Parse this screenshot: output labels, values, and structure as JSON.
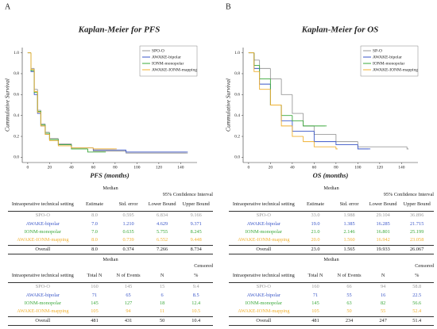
{
  "chart_data": [
    {
      "type": "line",
      "step": true,
      "panel_label": "A",
      "title": "Kaplan-Meier for PFS",
      "x_label": "PFS (months)",
      "y_label": "Cummulative Survival",
      "xlim": [
        -5,
        155
      ],
      "ylim": [
        -0.05,
        1.05
      ],
      "xticks": [
        0,
        20,
        40,
        60,
        80,
        100,
        120,
        140
      ],
      "yticks": [
        {
          "value": 0,
          "label": "0.0"
        },
        {
          "value": 0.2,
          "label": "0.2"
        },
        {
          "value": 0.4,
          "label": "0.4"
        },
        {
          "value": 0.6,
          "label": "0.6"
        },
        {
          "value": 0.8,
          "label": "0.8"
        },
        {
          "value": 1,
          "label": "1.0"
        }
      ],
      "legend": "upper right",
      "series": [
        {
          "name": "SPO-O",
          "color": "#9a9a9a",
          "x": [
            0,
            3,
            6,
            9,
            12,
            16,
            20,
            28,
            40,
            60,
            90,
            145
          ],
          "values": [
            1,
            0.85,
            0.65,
            0.45,
            0.32,
            0.24,
            0.18,
            0.13,
            0.09,
            0.06,
            0.04,
            0.04
          ]
        },
        {
          "name": "AWAKE-bipolar",
          "color": "#3a56c8",
          "x": [
            0,
            3,
            6,
            9,
            12,
            16,
            20,
            28,
            40,
            60,
            90,
            145
          ],
          "values": [
            1,
            0.82,
            0.6,
            0.42,
            0.3,
            0.22,
            0.17,
            0.12,
            0.09,
            0.07,
            0.05,
            0.05
          ]
        },
        {
          "name": "IONM-monopolar",
          "color": "#3aa83a",
          "x": [
            0,
            3,
            6,
            9,
            12,
            16,
            20,
            28,
            40,
            55,
            70
          ],
          "values": [
            1,
            0.83,
            0.62,
            0.44,
            0.31,
            0.23,
            0.17,
            0.12,
            0.08,
            0.05,
            0.05
          ]
        },
        {
          "name": "AWAKE-IONM-mapping",
          "color": "#f0b030",
          "x": [
            0,
            3,
            6,
            9,
            12,
            16,
            20,
            28,
            40,
            60,
            80
          ],
          "values": [
            1,
            0.84,
            0.63,
            0.43,
            0.3,
            0.22,
            0.16,
            0.11,
            0.09,
            0.08,
            0.08
          ]
        }
      ]
    },
    {
      "type": "line",
      "step": true,
      "panel_label": "B",
      "title": "Kaplan-Meier for OS",
      "x_label": "OS (months)",
      "y_label": "Cummulative Survival",
      "xlim": [
        -5,
        155
      ],
      "ylim": [
        -0.05,
        1.05
      ],
      "xticks": [
        0,
        20,
        40,
        60,
        80,
        100,
        120,
        140
      ],
      "yticks": [
        {
          "value": 0,
          "label": "0.0"
        },
        {
          "value": 0.2,
          "label": "0.2"
        },
        {
          "value": 0.4,
          "label": "0.4"
        },
        {
          "value": 0.6,
          "label": "0.6"
        },
        {
          "value": 0.8,
          "label": "0.8"
        },
        {
          "value": 1,
          "label": "1.0"
        }
      ],
      "legend": "upper right",
      "series": [
        {
          "name": "SP-O",
          "color": "#9a9a9a",
          "x": [
            0,
            5,
            10,
            20,
            30,
            40,
            50,
            60,
            80,
            100,
            145
          ],
          "values": [
            1,
            0.93,
            0.85,
            0.75,
            0.6,
            0.42,
            0.3,
            0.22,
            0.15,
            0.1,
            0.08
          ]
        },
        {
          "name": "AWAKE-bipolar",
          "color": "#3a56c8",
          "x": [
            0,
            5,
            10,
            20,
            30,
            40,
            60,
            80,
            100,
            110
          ],
          "values": [
            1,
            0.85,
            0.7,
            0.5,
            0.35,
            0.25,
            0.15,
            0.12,
            0.08,
            0.08
          ]
        },
        {
          "name": "IONM-monopolar",
          "color": "#3aa83a",
          "x": [
            0,
            5,
            10,
            20,
            30,
            40,
            50,
            70
          ],
          "values": [
            1,
            0.88,
            0.75,
            0.5,
            0.4,
            0.35,
            0.3,
            0.3
          ]
        },
        {
          "name": "AWAKE-IONM-mapping",
          "color": "#f0b030",
          "x": [
            0,
            5,
            10,
            20,
            30,
            40,
            50,
            60,
            80
          ],
          "values": [
            1,
            0.82,
            0.65,
            0.5,
            0.3,
            0.2,
            0.15,
            0.1,
            0.08
          ]
        }
      ]
    }
  ],
  "tables": [
    {
      "median": {
        "title": "Median",
        "group_header": "95% Confidence Interval",
        "columns": [
          "Intraoperative technical setting",
          "Estimate",
          "Std. error",
          "Lower Bound",
          "Upper Bound"
        ],
        "rows": [
          [
            "SPO-O",
            "8.0",
            "0.595",
            "6.834",
            "9.166"
          ],
          [
            "AWAKE-bipolar",
            "7.0",
            "1.210",
            "4.629",
            "9.371"
          ],
          [
            "IONM-monopolar",
            "7.0",
            "0.635",
            "5.755",
            "8.245"
          ],
          [
            "AWAKE-IONM-mapping",
            "8.0",
            "0.739",
            "6.552",
            "9.448"
          ],
          [
            "Overall",
            "8.0",
            "0.374",
            "7.266",
            "8.734"
          ]
        ]
      },
      "censored": {
        "title": "Median",
        "group_header": "Censored",
        "columns": [
          "Intraoperative technical setting",
          "Total N",
          "N of Events",
          "N",
          "%"
        ],
        "rows": [
          [
            "SPO-O",
            "160",
            "145",
            "15",
            "9.4"
          ],
          [
            "AWAKE-bipolar",
            "71",
            "65",
            "6",
            "8.5"
          ],
          [
            "IONM-monopolar",
            "145",
            "127",
            "18",
            "12.4"
          ],
          [
            "AWAKE-IONM-mapping",
            "105",
            "94",
            "11",
            "10.5"
          ],
          [
            "Overall",
            "481",
            "431",
            "50",
            "10.4"
          ]
        ]
      }
    },
    {
      "median": {
        "title": "Median",
        "group_header": "95% Confidence Interval",
        "columns": [
          "Intraoperative technical setting",
          "Estimate",
          "Std. error",
          "Lower Bound",
          "Upper Bound"
        ],
        "rows": [
          [
            "SPO-O",
            "33.0",
            "1.988",
            "29.104",
            "36.896"
          ],
          [
            "AWAKE-bipolar",
            "19.0",
            "1.385",
            "16.285",
            "21.715"
          ],
          [
            "IONM-monopolar",
            "21.0",
            "2.146",
            "16.801",
            "25.199"
          ],
          [
            "AWAKE-IONM-mapping",
            "20.0",
            "1.560",
            "16.942",
            "23.058"
          ],
          [
            "Overall",
            "23.0",
            "1.565",
            "19.933",
            "26.067"
          ]
        ]
      },
      "censored": {
        "title": "Median",
        "group_header": "Censored",
        "columns": [
          "Intraoperative technical setting",
          "Total N",
          "N of Events",
          "N",
          "%"
        ],
        "rows": [
          [
            "SPO-O",
            "160",
            "66",
            "94",
            "58.8"
          ],
          [
            "AWAKE-bipolar",
            "71",
            "55",
            "16",
            "22.5"
          ],
          [
            "IONM-monopolar",
            "145",
            "63",
            "82",
            "56.6"
          ],
          [
            "AWAKE-IONM-mapping",
            "105",
            "50",
            "55",
            "52.4"
          ],
          [
            "Overall",
            "481",
            "234",
            "247",
            "51.4"
          ]
        ]
      }
    }
  ]
}
